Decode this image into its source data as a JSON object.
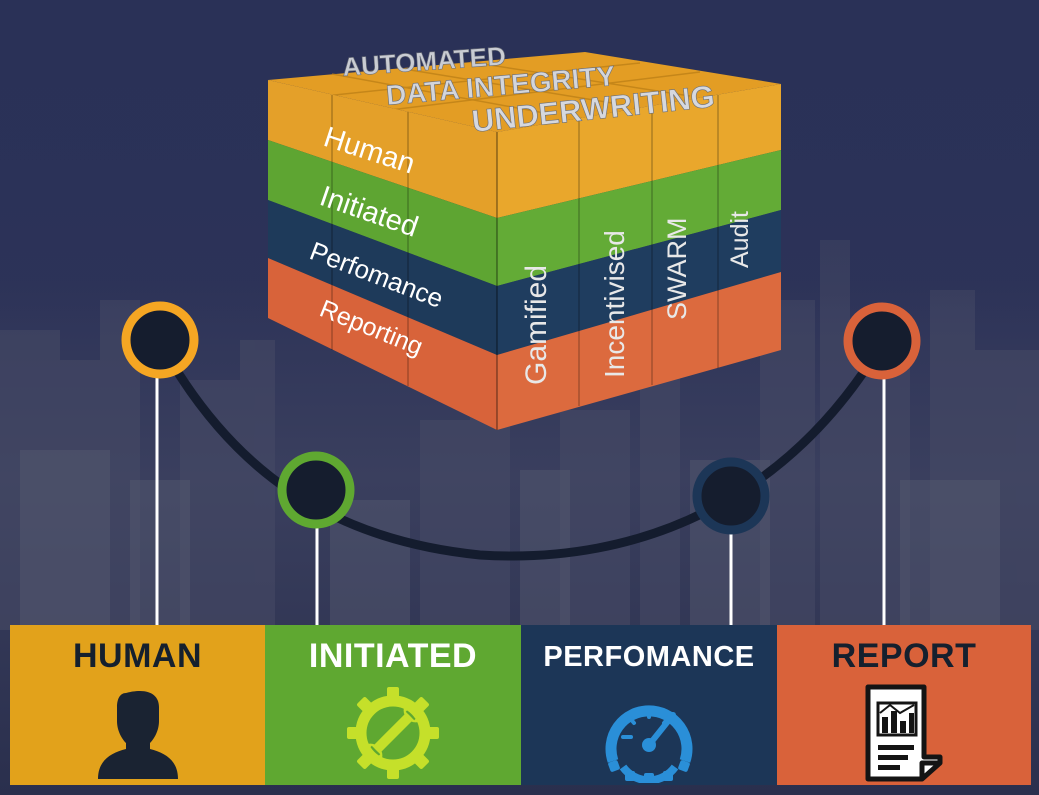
{
  "cube": {
    "top_words": [
      "AUTOMATED",
      "DATA INTEGRITY",
      "UNDERWRITING"
    ],
    "side_words": [
      "Human",
      "Initiated",
      "Perfomance",
      "Reporting"
    ],
    "front_words": [
      "Gamified",
      "Incentivised",
      "SWARM",
      "Audit"
    ],
    "colors": {
      "orange": "#e5a126",
      "green": "#5ea532",
      "navy": "#1e3a5a",
      "red": "#d8633a"
    }
  },
  "tiles": [
    {
      "label": "HUMAN",
      "icon": "person-silhouette-icon",
      "color": "#e2a21b"
    },
    {
      "label": "INITIATED",
      "icon": "gear-wrench-icon",
      "color": "#5fa831"
    },
    {
      "label": "PERFOMANCE",
      "icon": "speedometer-gear-icon",
      "color": "#1c3657"
    },
    {
      "label": "REPORT",
      "icon": "report-document-icon",
      "color": "#d9623a"
    }
  ],
  "nodes": [
    {
      "name": "human",
      "color": "#f5a623"
    },
    {
      "name": "initiated",
      "color": "#5fa831"
    },
    {
      "name": "performance",
      "color": "#1c3657"
    },
    {
      "name": "report",
      "color": "#d9623a"
    }
  ]
}
